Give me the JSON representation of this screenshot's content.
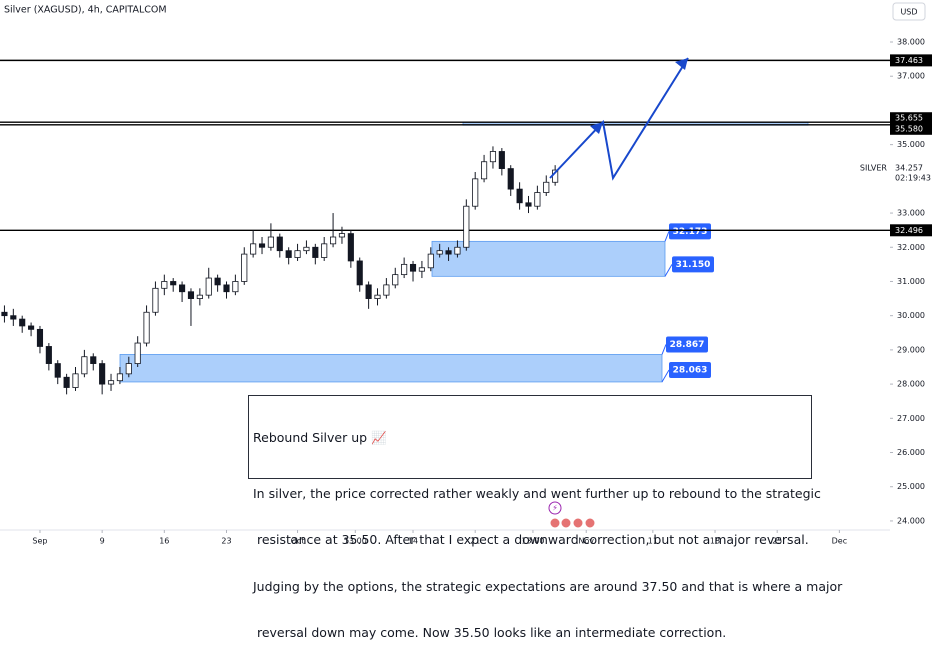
{
  "chart_data": {
    "type": "candlestick",
    "title": "Silver (XAGUSD), 4h, CAPITALCOM",
    "currency": "USD",
    "x": [
      -2,
      -1,
      0,
      1,
      2,
      3,
      4,
      5,
      6,
      7,
      8,
      9,
      10,
      11,
      12,
      13,
      14,
      15,
      16,
      17,
      18,
      19,
      20,
      21,
      22,
      23,
      24,
      25,
      26,
      27,
      28,
      29,
      30,
      31,
      32,
      33,
      34,
      35,
      36,
      37,
      38,
      39,
      40,
      41,
      42,
      43,
      44,
      45,
      46,
      47,
      48,
      49,
      50,
      51,
      52,
      53,
      54,
      55,
      56,
      57,
      58,
      59,
      60
    ],
    "candles": [
      [
        30.1,
        30.3,
        29.8,
        30.0
      ],
      [
        30.0,
        30.2,
        29.7,
        29.9
      ],
      [
        29.9,
        30.0,
        29.5,
        29.7
      ],
      [
        29.7,
        29.8,
        29.4,
        29.6
      ],
      [
        29.6,
        29.7,
        28.9,
        29.1
      ],
      [
        29.1,
        29.2,
        28.4,
        28.6
      ],
      [
        28.6,
        28.7,
        28.0,
        28.2
      ],
      [
        28.2,
        28.3,
        27.7,
        27.9
      ],
      [
        27.9,
        28.5,
        27.8,
        28.3
      ],
      [
        28.3,
        29.0,
        28.2,
        28.8
      ],
      [
        28.8,
        28.9,
        28.4,
        28.6
      ],
      [
        28.6,
        28.7,
        27.7,
        28.0
      ],
      [
        28.0,
        28.3,
        27.8,
        28.1
      ],
      [
        28.1,
        28.5,
        28.0,
        28.3
      ],
      [
        28.3,
        28.8,
        28.2,
        28.6
      ],
      [
        28.6,
        29.4,
        28.5,
        29.2
      ],
      [
        29.2,
        30.3,
        29.1,
        30.1
      ],
      [
        30.1,
        31.0,
        30.0,
        30.8
      ],
      [
        30.8,
        31.2,
        30.6,
        31.0
      ],
      [
        31.0,
        31.1,
        30.7,
        30.9
      ],
      [
        30.9,
        31.0,
        30.4,
        30.7
      ],
      [
        30.7,
        30.8,
        29.7,
        30.5
      ],
      [
        30.5,
        30.8,
        30.3,
        30.6
      ],
      [
        30.6,
        31.4,
        30.5,
        31.1
      ],
      [
        31.1,
        31.2,
        30.7,
        30.9
      ],
      [
        30.9,
        31.0,
        30.5,
        30.7
      ],
      [
        30.7,
        31.2,
        30.6,
        31.0
      ],
      [
        31.0,
        32.0,
        30.9,
        31.8
      ],
      [
        31.8,
        32.5,
        31.7,
        32.1
      ],
      [
        32.1,
        32.3,
        31.8,
        32.0
      ],
      [
        32.0,
        32.7,
        31.9,
        32.3
      ],
      [
        32.3,
        32.4,
        31.7,
        31.9
      ],
      [
        31.9,
        32.0,
        31.5,
        31.7
      ],
      [
        31.7,
        32.1,
        31.6,
        31.9
      ],
      [
        31.9,
        32.2,
        31.8,
        32.0
      ],
      [
        32.0,
        32.1,
        31.5,
        31.7
      ],
      [
        31.7,
        32.3,
        31.6,
        32.1
      ],
      [
        32.1,
        33.0,
        32.0,
        32.3
      ],
      [
        32.3,
        32.6,
        32.1,
        32.4
      ],
      [
        32.4,
        32.5,
        31.4,
        31.6
      ],
      [
        31.6,
        31.7,
        30.7,
        30.9
      ],
      [
        30.9,
        31.0,
        30.2,
        30.5
      ],
      [
        30.5,
        30.8,
        30.3,
        30.6
      ],
      [
        30.6,
        31.1,
        30.5,
        30.9
      ],
      [
        30.9,
        31.4,
        30.8,
        31.2
      ],
      [
        31.2,
        31.7,
        31.1,
        31.5
      ],
      [
        31.5,
        31.6,
        31.0,
        31.3
      ],
      [
        31.3,
        31.6,
        31.1,
        31.4
      ],
      [
        31.4,
        32.0,
        31.3,
        31.8
      ],
      [
        31.8,
        32.1,
        31.7,
        31.9
      ],
      [
        31.9,
        32.0,
        31.6,
        31.8
      ],
      [
        31.8,
        32.2,
        31.7,
        32.0
      ],
      [
        32.0,
        33.4,
        31.9,
        33.2
      ],
      [
        33.2,
        34.2,
        33.1,
        34.0
      ],
      [
        34.0,
        34.7,
        33.9,
        34.5
      ],
      [
        34.5,
        34.95,
        34.3,
        34.8
      ],
      [
        34.8,
        34.9,
        34.1,
        34.3
      ],
      [
        34.3,
        34.4,
        33.5,
        33.7
      ],
      [
        33.7,
        33.9,
        33.1,
        33.3
      ],
      [
        33.3,
        33.5,
        33.0,
        33.2
      ],
      [
        33.2,
        33.8,
        33.1,
        33.6
      ],
      [
        33.6,
        34.1,
        33.5,
        33.9
      ],
      [
        33.9,
        34.4,
        33.8,
        34.257
      ]
    ],
    "up_color": "#ffffff",
    "down_color": "#131722",
    "xlim": [
      -2.5,
      97.7
    ],
    "xticks": [
      {
        "value": 2,
        "label": "Sep"
      },
      {
        "value": 9,
        "label": "9"
      },
      {
        "value": 16,
        "label": "16"
      },
      {
        "value": 23,
        "label": "23"
      },
      {
        "value": 31,
        "label": "Oct"
      },
      {
        "value": 37.5,
        "label": "13:00"
      },
      {
        "value": 44,
        "label": "14"
      },
      {
        "value": 51,
        "label": "21"
      },
      {
        "value": 57.5,
        "label": "13:00"
      },
      {
        "value": 63.5,
        "label": "Nov"
      },
      {
        "value": 71,
        "label": "11"
      },
      {
        "value": 78,
        "label": "18"
      },
      {
        "value": 85,
        "label": "25"
      },
      {
        "value": 92,
        "label": "Dec"
      }
    ],
    "ylim": [
      23.735,
      39.228
    ],
    "yticks": [
      {
        "value": 38,
        "label": "38.000"
      },
      {
        "value": 37,
        "label": "37.000"
      },
      {
        "value": 35,
        "label": "35.000"
      },
      {
        "value": 33,
        "label": "33.000"
      },
      {
        "value": 32,
        "label": "32.000"
      },
      {
        "value": 31,
        "label": "31.000"
      },
      {
        "value": 30,
        "label": "30.000"
      },
      {
        "value": 29,
        "label": "29.000"
      },
      {
        "value": 28,
        "label": "28.000"
      },
      {
        "value": 27,
        "label": "27.000"
      },
      {
        "value": 26,
        "label": "26.000"
      },
      {
        "value": 25,
        "label": "25.000"
      },
      {
        "value": 24,
        "label": "24.000"
      }
    ],
    "levels": {
      "values": [
        37.463,
        35.655,
        35.58,
        32.496
      ],
      "value_labels": [
        "37.463",
        "35.655",
        "35.580",
        "32.496"
      ],
      "color": "#000000"
    },
    "zones": [
      {
        "values": [
          35.655,
          35.58
        ],
        "color": "#90bff9"
      },
      {
        "values": [
          32.173,
          31.15
        ],
        "value_labels": [
          "32.173",
          "31.150"
        ],
        "color": "#90bff9"
      },
      {
        "values": [
          28.867,
          28.063
        ],
        "value_labels": [
          "28.867",
          "28.063"
        ],
        "color": "#90bff9"
      }
    ],
    "last_price": {
      "symbol": "SILVER",
      "value": 34.257,
      "countdown": "02:19:43"
    },
    "note": {
      "title": "Rebound Silver up 📈",
      "lines": [
        "In silver, the price corrected rather weakly and went further up to rebound to the strategic",
        " resistance at 35.50. After that I expect a downward correction, but not a major reversal.",
        "Judging by the options, the strategic expectations are around 37.50 and that is where a major",
        " reversal down may come. Now 35.50 looks like an intermediate correction."
      ]
    }
  }
}
